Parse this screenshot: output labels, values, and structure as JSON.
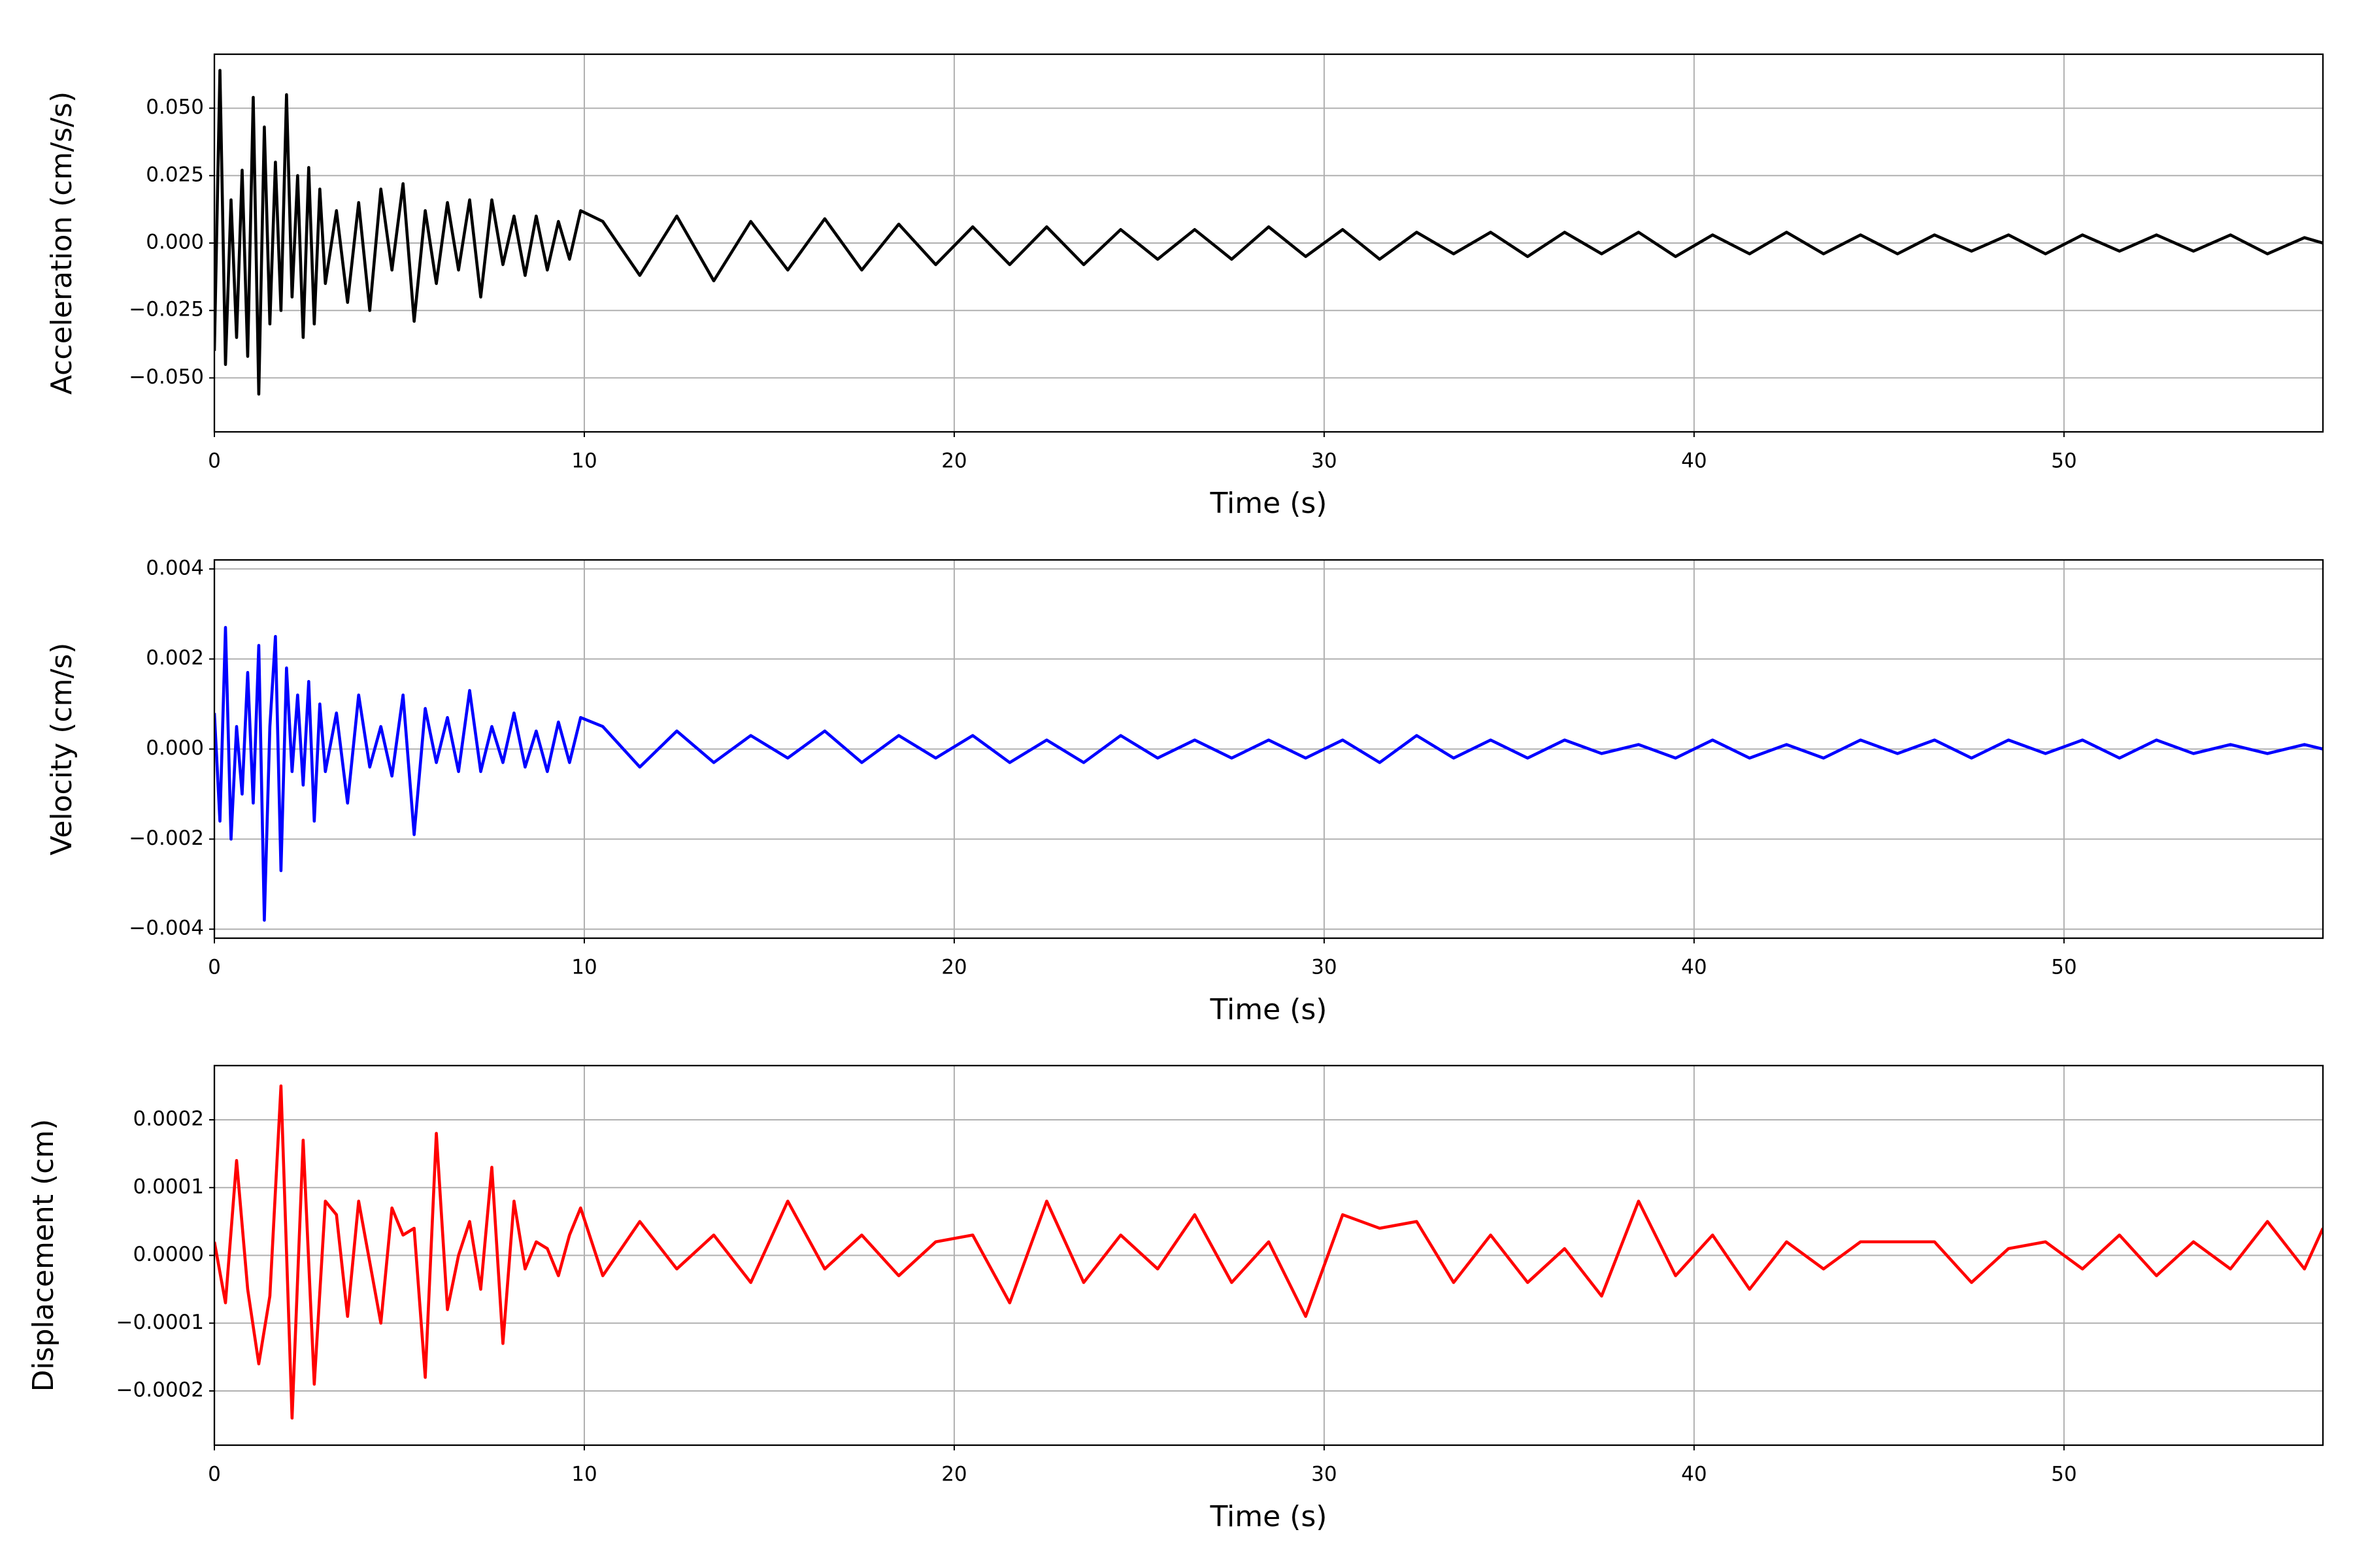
{
  "chart_data": [
    {
      "type": "line",
      "xlabel": "Time (s)",
      "ylabel": "Acceleration (cm/s/s)",
      "color": "#000000",
      "grid": true,
      "xlim": [
        0,
        57
      ],
      "xticks": [
        0,
        10,
        20,
        30,
        40,
        50
      ],
      "ylim": [
        -0.07,
        0.07
      ],
      "yticks": [
        {
          "value": -0.05,
          "label": "−0.050"
        },
        {
          "value": -0.025,
          "label": "−0.025"
        },
        {
          "value": 0,
          "label": "0.000"
        },
        {
          "value": 0.025,
          "label": "0.025"
        },
        {
          "value": 0.05,
          "label": "0.050"
        }
      ],
      "x": [
        0,
        0.15,
        0.3,
        0.45,
        0.6,
        0.75,
        0.9,
        1.05,
        1.2,
        1.35,
        1.5,
        1.65,
        1.8,
        1.95,
        2.1,
        2.25,
        2.4,
        2.55,
        2.7,
        2.85,
        3,
        3.3,
        3.6,
        3.9,
        4.2,
        4.5,
        4.8,
        5.1,
        5.4,
        5.7,
        6,
        6.3,
        6.6,
        6.9,
        7.2,
        7.5,
        7.8,
        8.1,
        8.4,
        8.7,
        9,
        9.3,
        9.6,
        9.9,
        10.5,
        11.5,
        12.5,
        13.5,
        14.5,
        15.5,
        16.5,
        17.5,
        18.5,
        19.5,
        20.5,
        21.5,
        22.5,
        23.5,
        24.5,
        25.5,
        26.5,
        27.5,
        28.5,
        29.5,
        30.5,
        31.5,
        32.5,
        33.5,
        34.5,
        35.5,
        36.5,
        37.5,
        38.5,
        39.5,
        40.5,
        41.5,
        42.5,
        43.5,
        44.5,
        45.5,
        46.5,
        47.5,
        48.5,
        49.5,
        50.5,
        51.5,
        52.5,
        53.5,
        54.5,
        55.5,
        56.5,
        57
      ],
      "values": [
        -0.04,
        0.064,
        -0.045,
        0.016,
        -0.035,
        0.027,
        -0.042,
        0.054,
        -0.056,
        0.043,
        -0.03,
        0.03,
        -0.025,
        0.055,
        -0.02,
        0.025,
        -0.035,
        0.028,
        -0.03,
        0.02,
        -0.015,
        0.012,
        -0.022,
        0.015,
        -0.025,
        0.02,
        -0.01,
        0.022,
        -0.029,
        0.012,
        -0.015,
        0.015,
        -0.01,
        0.016,
        -0.02,
        0.016,
        -0.008,
        0.01,
        -0.012,
        0.01,
        -0.01,
        0.008,
        -0.006,
        0.012,
        0.008,
        -0.012,
        0.01,
        -0.014,
        0.008,
        -0.01,
        0.009,
        -0.01,
        0.007,
        -0.008,
        0.006,
        -0.008,
        0.006,
        -0.008,
        0.005,
        -0.006,
        0.005,
        -0.006,
        0.006,
        -0.005,
        0.005,
        -0.006,
        0.004,
        -0.004,
        0.004,
        -0.005,
        0.004,
        -0.004,
        0.004,
        -0.005,
        0.003,
        -0.004,
        0.004,
        -0.004,
        0.003,
        -0.004,
        0.003,
        -0.003,
        0.003,
        -0.004,
        0.003,
        -0.003,
        0.003,
        -0.003,
        0.003,
        -0.004,
        0.002,
        0
      ]
    },
    {
      "type": "line",
      "xlabel": "Time (s)",
      "ylabel": "Velocity (cm/s)",
      "color": "#0000ff",
      "grid": true,
      "xlim": [
        0,
        57
      ],
      "xticks": [
        0,
        10,
        20,
        30,
        40,
        50
      ],
      "ylim": [
        -0.0042,
        0.0042
      ],
      "yticks": [
        {
          "value": -0.004,
          "label": "−0.004"
        },
        {
          "value": -0.002,
          "label": "−0.002"
        },
        {
          "value": 0,
          "label": "0.000"
        },
        {
          "value": 0.002,
          "label": "0.002"
        },
        {
          "value": 0.004,
          "label": "0.004"
        }
      ],
      "x": [
        0,
        0.15,
        0.3,
        0.45,
        0.6,
        0.75,
        0.9,
        1.05,
        1.2,
        1.35,
        1.5,
        1.65,
        1.8,
        1.95,
        2.1,
        2.25,
        2.4,
        2.55,
        2.7,
        2.85,
        3,
        3.3,
        3.6,
        3.9,
        4.2,
        4.5,
        4.8,
        5.1,
        5.4,
        5.7,
        6,
        6.3,
        6.6,
        6.9,
        7.2,
        7.5,
        7.8,
        8.1,
        8.4,
        8.7,
        9,
        9.3,
        9.6,
        9.9,
        10.5,
        11.5,
        12.5,
        13.5,
        14.5,
        15.5,
        16.5,
        17.5,
        18.5,
        19.5,
        20.5,
        21.5,
        22.5,
        23.5,
        24.5,
        25.5,
        26.5,
        27.5,
        28.5,
        29.5,
        30.5,
        31.5,
        32.5,
        33.5,
        34.5,
        35.5,
        36.5,
        37.5,
        38.5,
        39.5,
        40.5,
        41.5,
        42.5,
        43.5,
        44.5,
        45.5,
        46.5,
        47.5,
        48.5,
        49.5,
        50.5,
        51.5,
        52.5,
        53.5,
        54.5,
        55.5,
        56.5,
        57
      ],
      "values": [
        0.0008,
        -0.0016,
        0.0027,
        -0.002,
        0.0005,
        -0.001,
        0.0017,
        -0.0012,
        0.0023,
        -0.0038,
        0.0005,
        0.0025,
        -0.0027,
        0.0018,
        -0.0005,
        0.0012,
        -0.0008,
        0.0015,
        -0.0016,
        0.001,
        -0.0005,
        0.0008,
        -0.0012,
        0.0012,
        -0.0004,
        0.0005,
        -0.0006,
        0.0012,
        -0.0019,
        0.0009,
        -0.0003,
        0.0007,
        -0.0005,
        0.0013,
        -0.0005,
        0.0005,
        -0.0003,
        0.0008,
        -0.0004,
        0.0004,
        -0.0005,
        0.0006,
        -0.0003,
        0.0007,
        0.0005,
        -0.0004,
        0.0004,
        -0.0003,
        0.0003,
        -0.0002,
        0.0004,
        -0.0003,
        0.0003,
        -0.0002,
        0.0003,
        -0.0003,
        0.0002,
        -0.0003,
        0.0003,
        -0.0002,
        0.0002,
        -0.0002,
        0.0002,
        -0.0002,
        0.0002,
        -0.0003,
        0.0003,
        -0.0002,
        0.0002,
        -0.0002,
        0.0002,
        -0.0001,
        0.0001,
        -0.0002,
        0.0002,
        -0.0002,
        0.0001,
        -0.0002,
        0.0002,
        -0.0001,
        0.0002,
        -0.0002,
        0.0002,
        -0.0001,
        0.0002,
        -0.0002,
        0.0002,
        -0.0001,
        0.0001,
        -0.0001,
        0.0001,
        0
      ]
    },
    {
      "type": "line",
      "xlabel": "Time (s)",
      "ylabel": "Displacement (cm)",
      "color": "#ff0000",
      "grid": true,
      "xlim": [
        0,
        57
      ],
      "xticks": [
        0,
        10,
        20,
        30,
        40,
        50
      ],
      "ylim": [
        -0.00028,
        0.00028
      ],
      "yticks": [
        {
          "value": -0.0002,
          "label": "−0.0002"
        },
        {
          "value": -0.0001,
          "label": "−0.0001"
        },
        {
          "value": 0,
          "label": "0.0000"
        },
        {
          "value": 0.0001,
          "label": "0.0001"
        },
        {
          "value": 0.0002,
          "label": "0.0002"
        }
      ],
      "x": [
        0,
        0.3,
        0.6,
        0.9,
        1.2,
        1.5,
        1.8,
        2.1,
        2.4,
        2.7,
        3,
        3.3,
        3.6,
        3.9,
        4.2,
        4.5,
        4.8,
        5.1,
        5.4,
        5.7,
        6,
        6.3,
        6.6,
        6.9,
        7.2,
        7.5,
        7.8,
        8.1,
        8.4,
        8.7,
        9,
        9.3,
        9.6,
        9.9,
        10.5,
        11.5,
        12.5,
        13.5,
        14.5,
        15.5,
        16.5,
        17.5,
        18.5,
        19.5,
        20.5,
        21.5,
        22.5,
        23.5,
        24.5,
        25.5,
        26.5,
        27.5,
        28.5,
        29.5,
        30.5,
        31.5,
        32.5,
        33.5,
        34.5,
        35.5,
        36.5,
        37.5,
        38.5,
        39.5,
        40.5,
        41.5,
        42.5,
        43.5,
        44.5,
        45.5,
        46.5,
        47.5,
        48.5,
        49.5,
        50.5,
        51.5,
        52.5,
        53.5,
        54.5,
        55.5,
        56.5,
        57
      ],
      "values": [
        2e-05,
        -7e-05,
        0.00014,
        -5e-05,
        -0.00016,
        -6e-05,
        0.00025,
        -0.00024,
        0.00017,
        -0.00019,
        8e-05,
        6e-05,
        -9e-05,
        8e-05,
        -1e-05,
        -0.0001,
        7e-05,
        3e-05,
        4e-05,
        -0.00018,
        0.00018,
        -8e-05,
        0,
        5e-05,
        -5e-05,
        0.00013,
        -0.00013,
        8e-05,
        -2e-05,
        2e-05,
        1e-05,
        -3e-05,
        3e-05,
        7e-05,
        -3e-05,
        5e-05,
        -2e-05,
        3e-05,
        -4e-05,
        8e-05,
        -2e-05,
        3e-05,
        -3e-05,
        2e-05,
        3e-05,
        -7e-05,
        8e-05,
        -4e-05,
        3e-05,
        -2e-05,
        6e-05,
        -4e-05,
        2e-05,
        -9e-05,
        6e-05,
        4e-05,
        5e-05,
        -4e-05,
        3e-05,
        -4e-05,
        1e-05,
        -6e-05,
        8e-05,
        -3e-05,
        3e-05,
        -5e-05,
        2e-05,
        -2e-05,
        2e-05,
        2e-05,
        2e-05,
        -4e-05,
        1e-05,
        2e-05,
        -2e-05,
        3e-05,
        -3e-05,
        2e-05,
        -2e-05,
        5e-05,
        -2e-05,
        4e-05
      ]
    }
  ]
}
